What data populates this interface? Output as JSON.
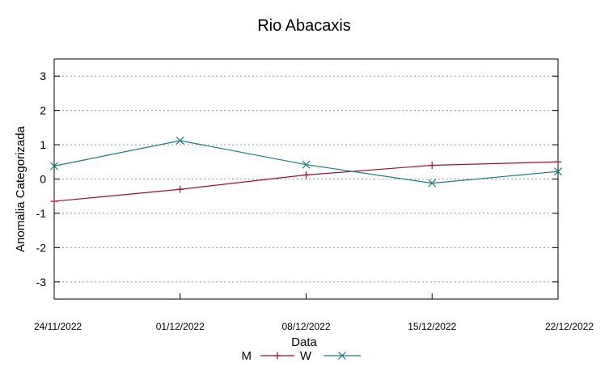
{
  "chart_data": {
    "type": "line",
    "title": "Rio Abacaxis",
    "xlabel": "Data",
    "ylabel": "Anomalia Categorizada",
    "x": [
      "24/11/2022",
      "01/12/2022",
      "08/12/2022",
      "15/12/2022",
      "22/12/2022"
    ],
    "ylim": [
      -3.5,
      3.5
    ],
    "yticks": [
      -3,
      -2,
      -1,
      0,
      1,
      2,
      3
    ],
    "grid": "horizontal-dotted",
    "legend_position": "bottom",
    "series": [
      {
        "name": "M",
        "color": "#a0102a",
        "marker": "plus",
        "values": [
          -0.65,
          -0.3,
          0.12,
          0.4,
          0.5
        ]
      },
      {
        "name": "W",
        "color": "#1a7a80",
        "marker": "x",
        "values": [
          0.38,
          1.12,
          0.42,
          -0.12,
          0.22
        ]
      }
    ]
  }
}
